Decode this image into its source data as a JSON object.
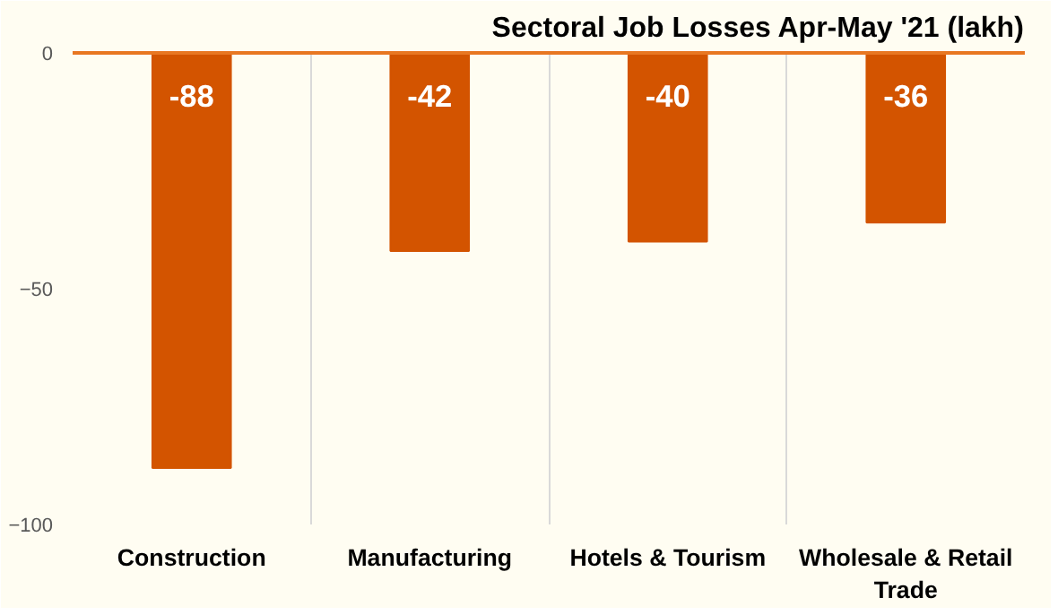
{
  "chart_data": {
    "type": "bar",
    "title": "Sectoral Job Losses Apr-May '21 (lakh)",
    "categories": [
      "Construction",
      "Manufacturing",
      "Hotels & Tourism",
      "Wholesale & Retail Trade"
    ],
    "values": [
      -88,
      -42,
      -40,
      -36
    ],
    "color": "#d35400",
    "ylim": [
      -100,
      0
    ],
    "yticks": [
      -100,
      -50,
      0
    ],
    "grid": "x",
    "data_labels": true
  }
}
